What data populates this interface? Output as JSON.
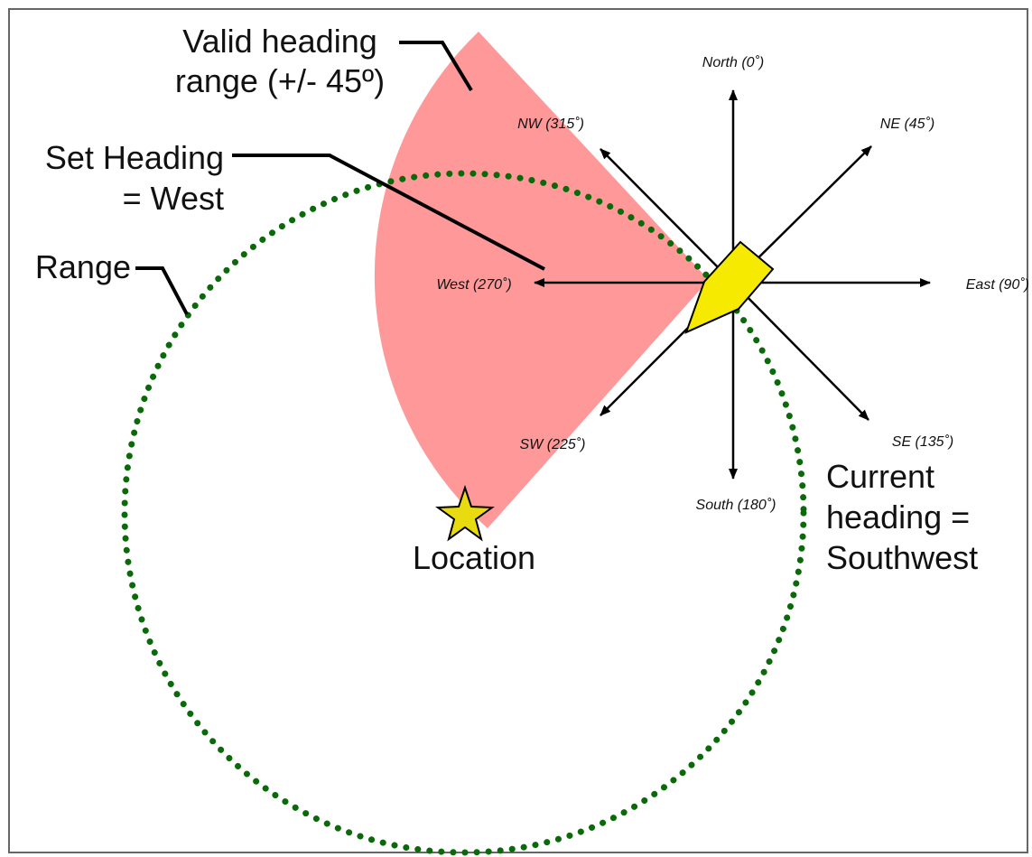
{
  "callouts": {
    "valid_range": [
      "Valid heading",
      "range (+/- 45º)"
    ],
    "set_heading": [
      "Set Heading",
      "= West"
    ],
    "range": "Range",
    "location": "Location",
    "current_heading": [
      "Current",
      "heading =",
      "Southwest"
    ]
  },
  "compass": {
    "north": "North (0˚)",
    "northeast": "NE (45˚)",
    "east": "East (90˚)",
    "southeast": "SE (135˚)",
    "south": "South (180˚)",
    "southwest": "SW (225˚)",
    "west": "West (270˚)",
    "northwest": "NW (315˚)"
  }
}
